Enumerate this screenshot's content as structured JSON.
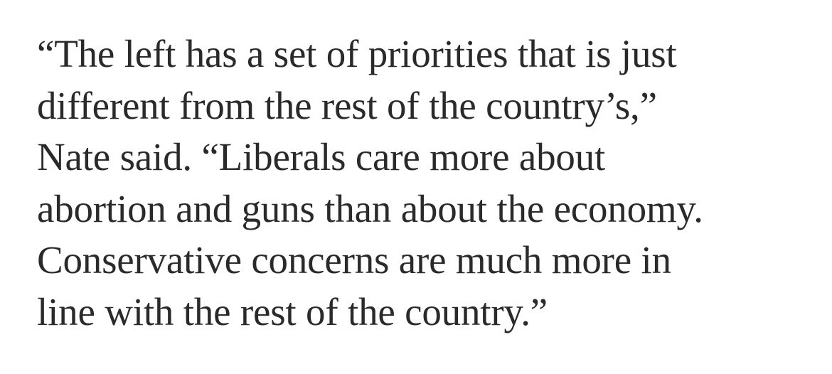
{
  "article": {
    "paragraph_lines": [
      "“The left has a set of priorities that is just",
      "different from the rest of the country’s,”",
      "Nate said. “Liberals care more about",
      "abortion and guns than about the economy.",
      "Conservative concerns are much more in",
      "line with the rest of the country.”"
    ],
    "text_color": "#2a2a2a",
    "background_color": "#ffffff"
  }
}
